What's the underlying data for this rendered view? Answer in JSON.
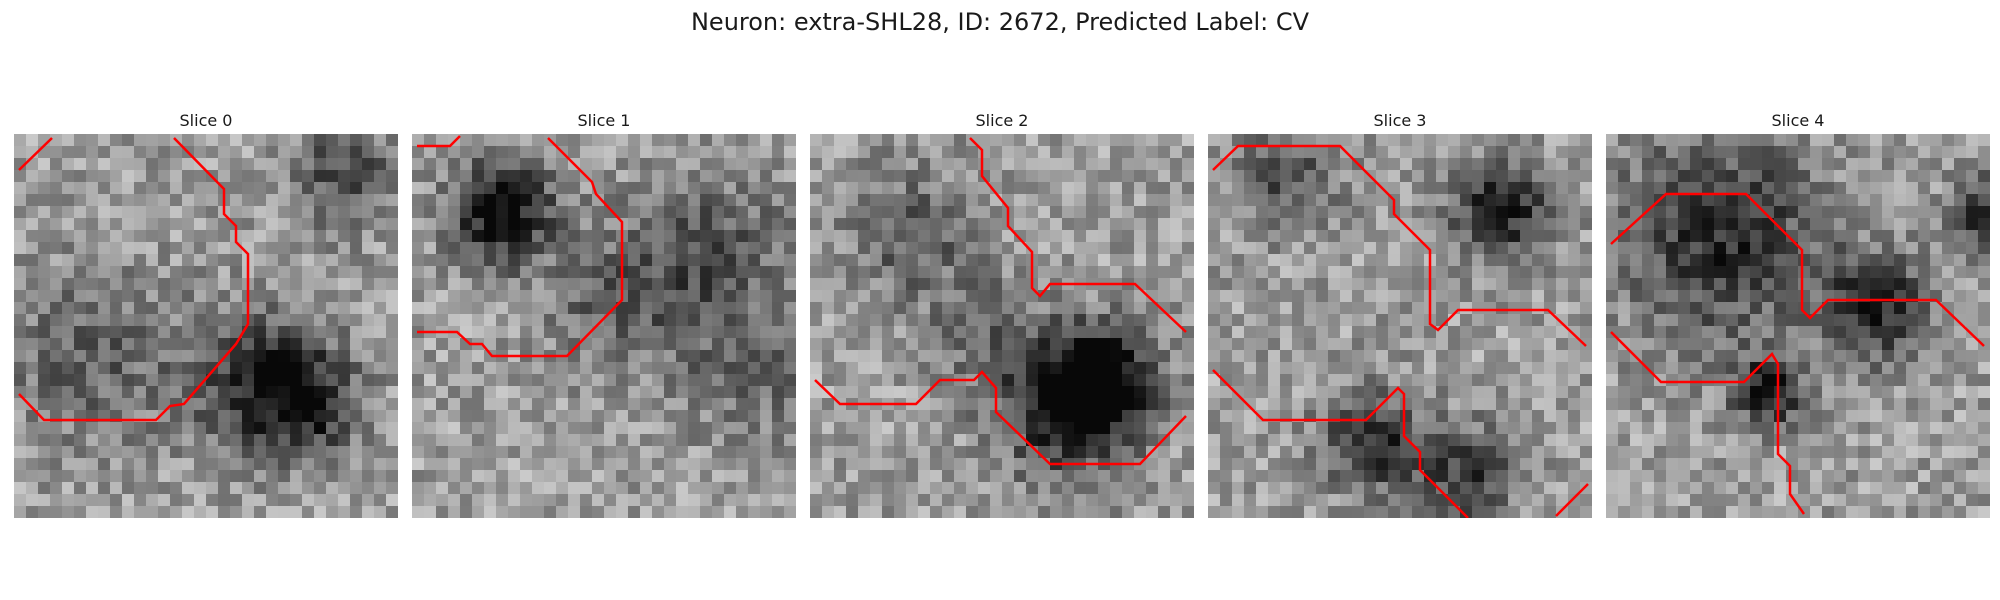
{
  "figure": {
    "title": "Neuron: extra-SHL28, ID: 2672, Predicted Label: CV",
    "contour_color": "#ff0000",
    "colormap": "grayscale"
  },
  "panels": [
    {
      "title": "Slice 0"
    },
    {
      "title": "Slice 1"
    },
    {
      "title": "Slice 2"
    },
    {
      "title": "Slice 3"
    },
    {
      "title": "Slice 4"
    }
  ]
}
